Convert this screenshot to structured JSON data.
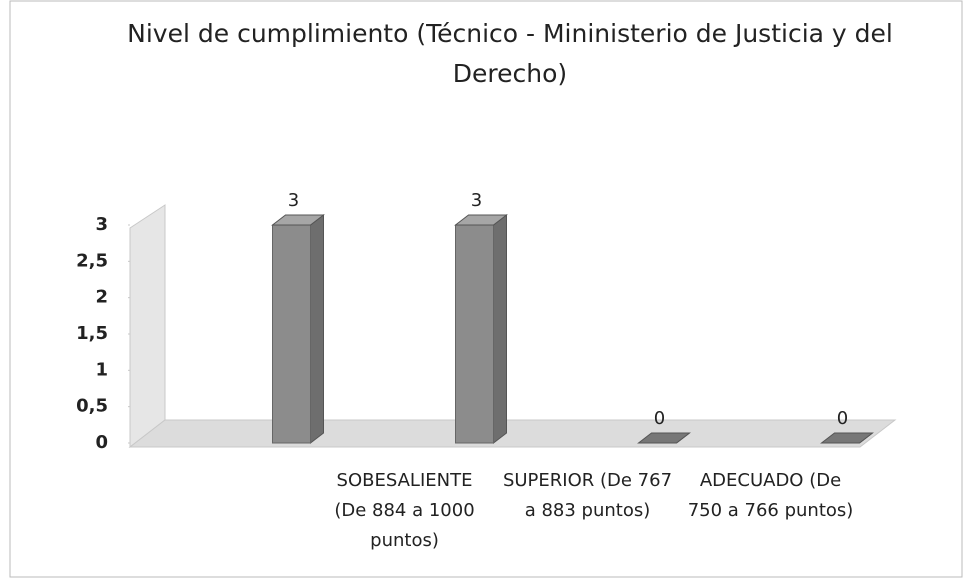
{
  "chart_data": {
    "type": "bar3d",
    "title": "Nivel de cumplimiento (Técnico - Mininisterio de Justicia y del Derecho)",
    "categories": [
      null,
      "SOBESALIENTE (De  884 a 1000 puntos)",
      "SUPERIOR (De 767 a 883 puntos)",
      "ADECUADO (De  750 a 766 puntos)"
    ],
    "values": [
      3,
      3,
      0,
      0
    ],
    "color": "#8c8c8c",
    "ylim": [
      0,
      3
    ],
    "yticks": [
      0,
      {
        "value": 0.5,
        "label": "0,5"
      },
      1,
      {
        "value": 1.5,
        "label": "1,5"
      },
      2,
      {
        "value": 2.5,
        "label": "2,5"
      },
      3
    ]
  }
}
